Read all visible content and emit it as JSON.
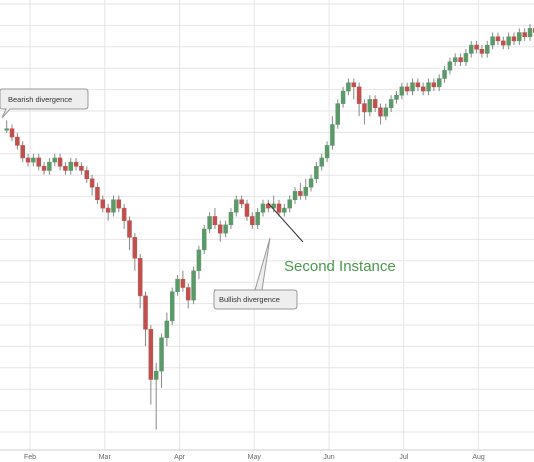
{
  "chart_data": {
    "type": "candlestick",
    "x_unit": "trading day",
    "y_range": [
      0,
      100
    ],
    "colors": {
      "up": "#5b9a68",
      "down": "#c0504d",
      "grid": "#e6e6e6",
      "annotation": "#4a9a4a"
    },
    "months": [
      "Feb",
      "Mar",
      "Apr",
      "May",
      "Jun",
      "Jul",
      "Aug"
    ],
    "candles": [
      [
        0,
        74,
        74,
        76,
        73
      ],
      [
        1,
        74,
        72,
        75,
        71
      ],
      [
        2,
        72,
        70,
        73,
        69
      ],
      [
        3,
        70,
        67,
        71,
        66
      ],
      [
        4,
        67,
        66,
        68,
        65
      ],
      [
        5,
        66,
        67,
        68,
        65
      ],
      [
        6,
        67,
        65,
        68,
        64
      ],
      [
        7,
        65,
        64,
        66,
        63
      ],
      [
        8,
        64,
        66,
        67,
        63
      ],
      [
        9,
        66,
        67,
        68,
        65
      ],
      [
        10,
        67,
        65,
        68,
        64
      ],
      [
        11,
        65,
        64,
        66,
        63
      ],
      [
        12,
        64,
        66,
        67,
        63
      ],
      [
        13,
        66,
        65,
        67,
        64
      ],
      [
        14,
        65,
        64,
        66,
        63
      ],
      [
        15,
        64,
        62,
        65,
        61
      ],
      [
        16,
        62,
        60,
        63,
        58
      ],
      [
        17,
        60,
        57,
        61,
        56
      ],
      [
        18,
        57,
        55,
        58,
        54
      ],
      [
        19,
        55,
        54,
        56,
        52
      ],
      [
        20,
        54,
        57,
        58,
        53
      ],
      [
        21,
        57,
        55,
        58,
        54
      ],
      [
        22,
        55,
        52,
        56,
        50
      ],
      [
        23,
        52,
        48,
        53,
        45
      ],
      [
        24,
        48,
        43,
        49,
        40
      ],
      [
        25,
        43,
        34,
        44,
        31
      ],
      [
        26,
        34,
        26,
        35,
        22
      ],
      [
        27,
        26,
        14,
        27,
        8
      ],
      [
        28,
        14,
        16,
        18,
        2
      ],
      [
        29,
        16,
        24,
        25,
        12
      ],
      [
        30,
        24,
        28,
        30,
        22
      ],
      [
        31,
        28,
        35,
        36,
        27
      ],
      [
        32,
        35,
        38,
        39,
        34
      ],
      [
        33,
        38,
        36,
        40,
        35
      ],
      [
        34,
        36,
        33,
        37,
        31
      ],
      [
        35,
        33,
        40,
        41,
        32
      ],
      [
        36,
        40,
        45,
        46,
        38
      ],
      [
        37,
        45,
        50,
        51,
        44
      ],
      [
        38,
        50,
        53,
        54,
        49
      ],
      [
        39,
        53,
        51,
        55,
        50
      ],
      [
        40,
        51,
        49,
        52,
        47
      ],
      [
        41,
        49,
        51,
        52,
        48
      ],
      [
        42,
        51,
        54,
        55,
        50
      ],
      [
        43,
        54,
        57,
        58,
        53
      ],
      [
        44,
        57,
        56,
        58,
        55
      ],
      [
        45,
        56,
        53,
        57,
        52
      ],
      [
        46,
        53,
        51,
        54,
        50
      ],
      [
        47,
        51,
        54,
        55,
        50
      ],
      [
        48,
        54,
        56,
        57,
        53
      ],
      [
        49,
        56,
        55,
        57,
        54
      ],
      [
        50,
        55,
        56,
        58,
        54
      ],
      [
        51,
        56,
        54,
        57,
        53
      ],
      [
        52,
        54,
        55,
        56,
        53
      ],
      [
        53,
        55,
        57,
        58,
        54
      ],
      [
        54,
        57,
        59,
        60,
        56
      ],
      [
        55,
        59,
        58,
        61,
        57
      ],
      [
        56,
        58,
        60,
        62,
        57
      ],
      [
        57,
        60,
        62,
        63,
        59
      ],
      [
        58,
        62,
        65,
        66,
        61
      ],
      [
        59,
        65,
        67,
        68,
        64
      ],
      [
        60,
        67,
        70,
        71,
        66
      ],
      [
        61,
        70,
        75,
        77,
        69
      ],
      [
        62,
        75,
        80,
        81,
        74
      ],
      [
        63,
        80,
        83,
        84,
        79
      ],
      [
        64,
        83,
        85,
        86,
        82
      ],
      [
        65,
        85,
        84,
        86,
        81
      ],
      [
        66,
        84,
        80,
        85,
        77
      ],
      [
        67,
        80,
        78,
        81,
        75
      ],
      [
        68,
        78,
        81,
        82,
        77
      ],
      [
        69,
        81,
        79,
        82,
        78
      ],
      [
        70,
        79,
        77,
        80,
        75
      ],
      [
        71,
        77,
        79,
        80,
        76
      ],
      [
        72,
        79,
        81,
        82,
        78
      ],
      [
        73,
        81,
        82,
        83,
        80
      ],
      [
        74,
        82,
        84,
        85,
        81
      ],
      [
        75,
        84,
        83,
        85,
        82
      ],
      [
        76,
        83,
        85,
        86,
        82
      ],
      [
        77,
        85,
        84,
        86,
        83
      ],
      [
        78,
        84,
        83,
        85,
        82
      ],
      [
        79,
        83,
        85,
        86,
        82
      ],
      [
        80,
        85,
        84,
        86,
        83
      ],
      [
        81,
        84,
        86,
        87,
        83
      ],
      [
        82,
        86,
        88,
        89,
        85
      ],
      [
        83,
        88,
        90,
        91,
        87
      ],
      [
        84,
        90,
        91,
        92,
        89
      ],
      [
        85,
        91,
        90,
        92,
        89
      ],
      [
        86,
        90,
        92,
        93,
        89
      ],
      [
        87,
        92,
        94,
        95,
        91
      ],
      [
        88,
        94,
        93,
        95,
        92
      ],
      [
        89,
        93,
        92,
        94,
        91
      ],
      [
        90,
        92,
        94,
        95,
        91
      ],
      [
        91,
        94,
        96,
        97,
        93
      ],
      [
        92,
        96,
        95,
        97,
        94
      ],
      [
        93,
        95,
        94,
        96,
        93
      ],
      [
        94,
        94,
        96,
        97,
        93
      ],
      [
        95,
        96,
        95,
        97,
        94
      ],
      [
        96,
        95,
        97,
        98,
        94
      ],
      [
        97,
        97,
        96,
        98,
        95
      ],
      [
        98,
        96,
        98,
        99,
        95
      ],
      [
        99,
        98,
        97,
        99,
        96
      ]
    ],
    "annotations": {
      "bearish": "Bearish divergence",
      "bullish": "Bullish divergence",
      "second": "Second Instance"
    }
  }
}
